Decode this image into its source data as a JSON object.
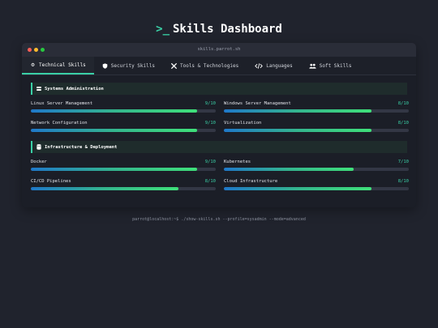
{
  "header": {
    "logo": ">_",
    "title": "Skills Dashboard"
  },
  "window": {
    "title": "skills.parrot.sh"
  },
  "tabs": [
    {
      "label": "Technical Skills",
      "icon": "gear-icon",
      "active": true
    },
    {
      "label": "Security Skills",
      "icon": "shield-icon",
      "active": false
    },
    {
      "label": "Tools & Technologies",
      "icon": "tools-icon",
      "active": false
    },
    {
      "label": "Languages",
      "icon": "code-icon",
      "active": false
    },
    {
      "label": "Soft Skills",
      "icon": "users-icon",
      "active": false
    }
  ],
  "sections": [
    {
      "title": "Systems Administration",
      "icon": "server-icon",
      "skills": [
        {
          "name": "Linux Server Management",
          "score": "9/10",
          "level": 0.9
        },
        {
          "name": "Windows Server Management",
          "score": "8/10",
          "level": 0.8
        },
        {
          "name": "Network Configuration",
          "score": "9/10",
          "level": 0.9
        },
        {
          "name": "Virtualization",
          "score": "8/10",
          "level": 0.8
        }
      ]
    },
    {
      "title": "Infrastructure & Deployment",
      "icon": "database-icon",
      "skills": [
        {
          "name": "Docker",
          "score": "9/10",
          "level": 0.9
        },
        {
          "name": "Kubernetes",
          "score": "7/10",
          "level": 0.7
        },
        {
          "name": "CI/CD Pipelines",
          "score": "8/10",
          "level": 0.8
        },
        {
          "name": "Cloud Infrastructure",
          "score": "8/10",
          "level": 0.8
        }
      ]
    }
  ],
  "footer": {
    "command": "parrot@localhost:~$ ./show-skills.sh --profile=sysadmin --mode=advanced"
  },
  "colors": {
    "accent": "#3ad0a6",
    "background": "#20232d",
    "bar_start": "#1f78c9",
    "bar_end": "#3fe07a"
  }
}
